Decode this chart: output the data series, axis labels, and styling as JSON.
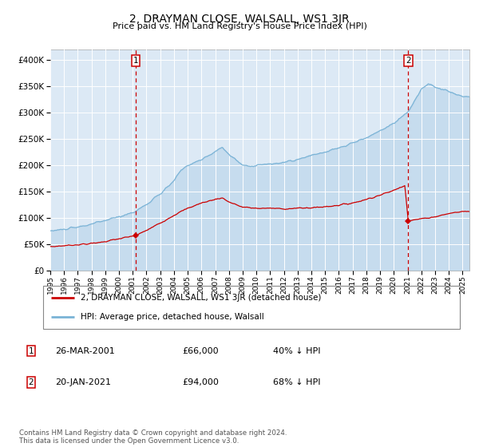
{
  "title": "2, DRAYMAN CLOSE, WALSALL, WS1 3JR",
  "subtitle": "Price paid vs. HM Land Registry's House Price Index (HPI)",
  "ylim": [
    0,
    420000
  ],
  "yticks": [
    0,
    50000,
    100000,
    150000,
    200000,
    250000,
    300000,
    350000,
    400000
  ],
  "background_color": "#ffffff",
  "plot_bg_color": "#dce9f5",
  "grid_color": "#ffffff",
  "hpi_color": "#7ab3d6",
  "hpi_fill_color": "#b8d4ea",
  "price_color": "#cc0000",
  "vline_color": "#cc0000",
  "sale1_date_num": 2001.23,
  "sale1_price": 66000,
  "sale2_date_num": 2021.05,
  "sale2_price": 94000,
  "legend_label_red": "2, DRAYMAN CLOSE, WALSALL, WS1 3JR (detached house)",
  "legend_label_blue": "HPI: Average price, detached house, Walsall",
  "table_row1": [
    "1",
    "26-MAR-2001",
    "£66,000",
    "40% ↓ HPI"
  ],
  "table_row2": [
    "2",
    "20-JAN-2021",
    "£94,000",
    "68% ↓ HPI"
  ],
  "footer": "Contains HM Land Registry data © Crown copyright and database right 2024.\nThis data is licensed under the Open Government Licence v3.0.",
  "xstart": 1995.0,
  "xend": 2025.5
}
